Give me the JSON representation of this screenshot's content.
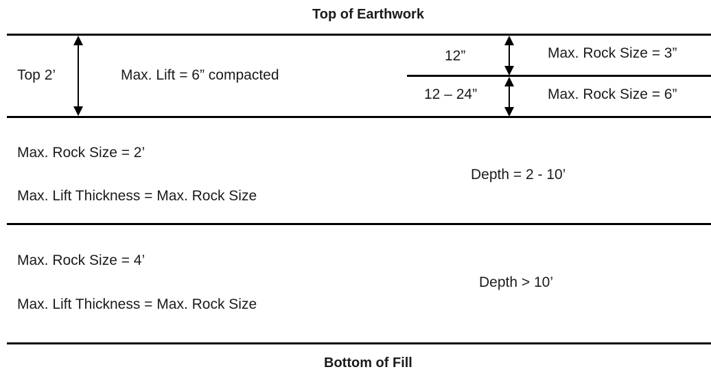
{
  "top_label": "Top of Earthwork",
  "bottom_label": "Bottom of Fill",
  "zone1": {
    "depth_label": "Top 2’",
    "lift_label": "Max. Lift = 6” compacted",
    "sub": [
      {
        "depth": "12”",
        "rock": "Max. Rock Size = 3”"
      },
      {
        "depth": "12 – 24”",
        "rock": "Max. Rock Size = 6”"
      }
    ]
  },
  "zone2": {
    "rock": "Max. Rock Size = 2’",
    "lift": "Max. Lift Thickness = Max. Rock Size",
    "depth": "Depth = 2 - 10’"
  },
  "zone3": {
    "rock": "Max. Rock Size = 4’",
    "lift": "Max. Lift Thickness = Max. Rock Size",
    "depth": "Depth > 10’"
  }
}
